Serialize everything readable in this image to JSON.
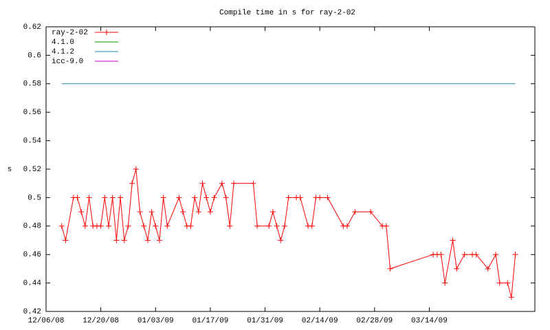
{
  "chart_data": {
    "type": "line",
    "title": "Compile time in s for ray-2-02",
    "y_label": "s",
    "legend": "upper left",
    "xlim": [
      "12/06/08",
      "04/10/09"
    ],
    "xticks": [
      "12/06/08",
      "12/20/08",
      "01/03/09",
      "01/17/09",
      "01/31/09",
      "02/14/09",
      "02/28/09",
      "03/14/09"
    ],
    "ylim": [
      0.42,
      0.62
    ],
    "yticks": [
      0.42,
      0.44,
      0.46,
      0.48,
      0.5,
      0.52,
      0.54,
      0.56,
      0.58,
      0.6,
      0.62
    ],
    "series": [
      {
        "name": "ray-2-02",
        "color": "#ff0000",
        "marker": "+",
        "x": [
          "12/10/08",
          "12/11/08",
          "12/13/08",
          "12/14/08",
          "12/15/08",
          "12/16/08",
          "12/17/08",
          "12/18/08",
          "12/19/08",
          "12/20/08",
          "12/21/08",
          "12/22/08",
          "12/23/08",
          "12/24/08",
          "12/25/08",
          "12/26/08",
          "12/27/08",
          "12/28/08",
          "12/29/08",
          "12/30/08",
          "12/31/08",
          "01/01/09",
          "01/02/09",
          "01/03/09",
          "01/04/09",
          "01/05/09",
          "01/06/09",
          "01/09/09",
          "01/10/09",
          "01/11/09",
          "01/12/09",
          "01/13/09",
          "01/14/09",
          "01/15/09",
          "01/16/09",
          "01/17/09",
          "01/18/09",
          "01/20/09",
          "01/21/09",
          "01/22/09",
          "01/23/09",
          "01/28/09",
          "01/29/09",
          "02/01/09",
          "02/02/09",
          "02/03/09",
          "02/04/09",
          "02/05/09",
          "02/06/09",
          "02/08/09",
          "02/09/09",
          "02/11/09",
          "02/12/09",
          "02/13/09",
          "02/14/09",
          "02/16/09",
          "02/20/09",
          "02/21/09",
          "02/23/09",
          "02/27/09",
          "03/02/09",
          "03/03/09",
          "03/04/09",
          "03/15/09",
          "03/16/09",
          "03/17/09",
          "03/18/09",
          "03/20/09",
          "03/21/09",
          "03/23/09",
          "03/25/09",
          "03/26/09",
          "03/29/09",
          "03/31/09",
          "04/01/09",
          "04/03/09",
          "04/04/09",
          "04/05/09"
        ],
        "values": [
          0.48,
          0.47,
          0.5,
          0.5,
          0.49,
          0.48,
          0.5,
          0.48,
          0.48,
          0.48,
          0.5,
          0.48,
          0.5,
          0.47,
          0.5,
          0.47,
          0.48,
          0.51,
          0.52,
          0.49,
          0.48,
          0.47,
          0.49,
          0.48,
          0.47,
          0.5,
          0.48,
          0.5,
          0.49,
          0.48,
          0.48,
          0.5,
          0.49,
          0.51,
          0.5,
          0.49,
          0.5,
          0.51,
          0.5,
          0.48,
          0.51,
          0.51,
          0.48,
          0.48,
          0.49,
          0.48,
          0.47,
          0.48,
          0.5,
          0.5,
          0.5,
          0.48,
          0.48,
          0.5,
          0.5,
          0.5,
          0.48,
          0.48,
          0.49,
          0.49,
          0.48,
          0.48,
          0.45,
          0.46,
          0.46,
          0.46,
          0.44,
          0.47,
          0.45,
          0.46,
          0.46,
          0.46,
          0.45,
          0.46,
          0.44,
          0.44,
          0.43,
          0.46
        ]
      },
      {
        "name": "4.1.0",
        "color": "#00a000",
        "x": [],
        "values": []
      },
      {
        "name": "4.1.2",
        "color": "#1f8fb0",
        "x": [
          "12/10/08",
          "04/05/09"
        ],
        "values": [
          0.58,
          0.58
        ]
      },
      {
        "name": "icc-9.0",
        "color": "#c000c0",
        "x": [],
        "values": []
      }
    ]
  }
}
